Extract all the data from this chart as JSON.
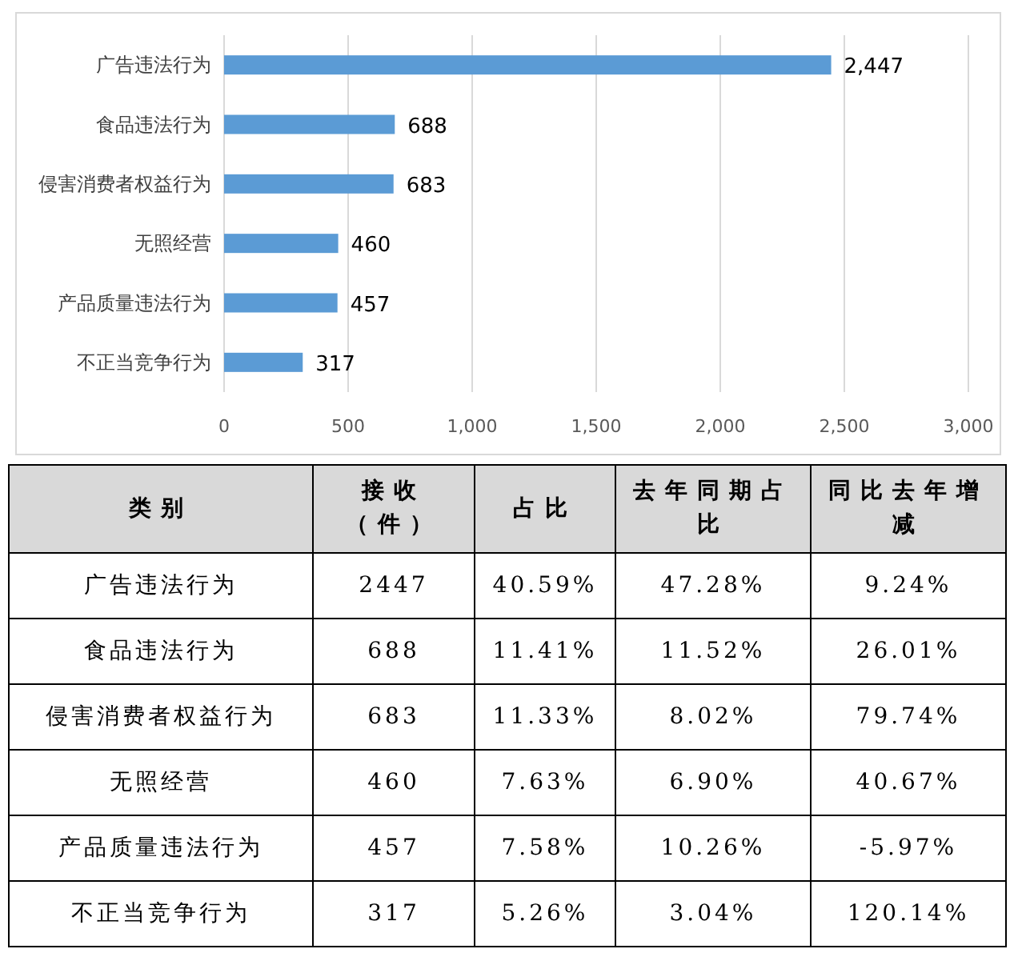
{
  "chart_data": [
    {
      "type": "bar",
      "orientation": "horizontal",
      "categories": [
        "广告违法行为",
        "食品违法行为",
        "侵害消费者权益行为",
        "无照经营",
        "产品质量违法行为",
        "不正当竞争行为"
      ],
      "values": [
        2447,
        688,
        683,
        460,
        457,
        317
      ],
      "value_labels": [
        "2,447",
        "688",
        "683",
        "460",
        "457",
        "317"
      ],
      "color": "#5b9bd5",
      "xlim": [
        0,
        3000
      ],
      "xticks": [
        0,
        500,
        {
          "value": 1000,
          "label": "1,000"
        },
        {
          "value": 1500,
          "label": "1,500"
        },
        {
          "value": 2000,
          "label": "2,000"
        },
        {
          "value": 2500,
          "label": "2,500"
        },
        {
          "value": 3000,
          "label": "3,000"
        }
      ],
      "grid": "x"
    },
    {
      "type": "other",
      "ylabel": "类别",
      "categories": [
        "广告违法行为",
        "食品违法行为",
        "侵害消费者权益行为",
        "无照经营",
        "产品质量违法行为",
        "不正当竞争行为"
      ],
      "series": [
        {
          "name": "接收（件）",
          "values": [
            2447,
            688,
            683,
            460,
            457,
            317
          ],
          "value_labels": [
            "2447",
            "688",
            "683",
            "460",
            "457",
            "317"
          ]
        },
        {
          "name": "占比",
          "values": [
            40.59,
            11.41,
            11.33,
            7.63,
            7.58,
            5.26
          ],
          "value_labels": [
            "40.59%",
            "11.41%",
            "11.33%",
            "7.63%",
            "7.58%",
            "5.26%"
          ]
        },
        {
          "name": "去年同期占比",
          "values": [
            47.28,
            11.52,
            8.02,
            6.9,
            10.26,
            3.04
          ],
          "value_labels": [
            "47.28%",
            "11.52%",
            "8.02%",
            "6.90%",
            "10.26%",
            "3.04%"
          ]
        },
        {
          "name": "同比去年增减",
          "values": [
            9.24,
            26.01,
            79.74,
            40.67,
            -5.97,
            120.14
          ],
          "value_labels": [
            "9.24%",
            "26.01%",
            "79.74%",
            "40.67%",
            "-5.97%",
            "120.14%"
          ]
        }
      ]
    }
  ]
}
